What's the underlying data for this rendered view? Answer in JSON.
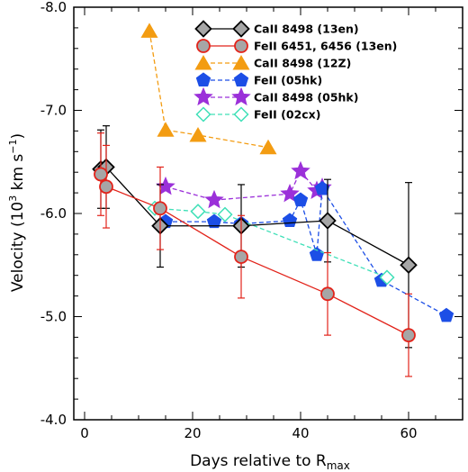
{
  "chart_data": {
    "type": "scatter",
    "xlabel": "Days relative to R",
    "xlabel_sub": "max",
    "ylabel": "Velocity",
    "ylabel_unit_prefix": "(10",
    "ylabel_unit_exp": "3",
    "ylabel_unit_mid": " km s",
    "ylabel_unit_exp2": "−1",
    "ylabel_unit_suffix": ")",
    "xlim": [
      -2,
      70
    ],
    "ylim": [
      -8.0,
      -4.0
    ],
    "y_inverted": true,
    "xticks": [
      0,
      20,
      40,
      60
    ],
    "xtick_labels": [
      "0",
      "20",
      "40",
      "60"
    ],
    "yticks": [
      -8.0,
      -7.0,
      -6.0,
      -5.0,
      -4.0
    ],
    "ytick_labels": [
      "-8.0",
      "-7.0",
      "-6.0",
      "-5.0",
      "-4.0"
    ],
    "legend_position": "top-right",
    "series": [
      {
        "name": "CaII 8498 (13en)",
        "marker": "diamond",
        "color": "#000000",
        "fill": "#a6a6a6",
        "line": "solid",
        "x": [
          3,
          4,
          14,
          29,
          45,
          60
        ],
        "y": [
          -6.43,
          -6.45,
          -5.88,
          -5.88,
          -5.93,
          -5.5
        ],
        "err": [
          0.38,
          0.4,
          0.4,
          0.4,
          0.4,
          0.8
        ],
        "errcolor": "#000000"
      },
      {
        "name": "FeII 6451, 6456 (13en)",
        "marker": "circle",
        "color": "#e2231a",
        "fill": "#a6a6a6",
        "line": "solid",
        "x": [
          3,
          4,
          14,
          29,
          45,
          60
        ],
        "y": [
          -6.38,
          -6.26,
          -6.05,
          -5.58,
          -5.22,
          -4.82
        ],
        "err": [
          0.4,
          0.4,
          0.4,
          0.4,
          0.4,
          0.4
        ],
        "errcolor": "#e2231a"
      },
      {
        "name": "CaII 8498 (12Z)",
        "marker": "triangle",
        "color": "#f39c12",
        "fill": "#f39c12",
        "line": "dashed",
        "x": [
          12,
          15,
          21,
          34
        ],
        "y": [
          -7.77,
          -6.81,
          -6.76,
          -6.64
        ]
      },
      {
        "name": "FeII (05hk)",
        "marker": "pentagon",
        "color": "#1c4ee6",
        "fill": "#1c4ee6",
        "line": "dashed",
        "x": [
          15,
          24,
          29,
          38,
          40,
          43,
          44,
          55,
          67
        ],
        "y": [
          -5.92,
          -5.92,
          -5.9,
          -5.93,
          -6.13,
          -5.6,
          -6.24,
          -5.35,
          -5.01
        ]
      },
      {
        "name": "CaII 8498 (05hk)",
        "marker": "star",
        "color": "#9b30d9",
        "fill": "#9b30d9",
        "line": "dashed",
        "x": [
          15,
          24,
          38,
          40,
          43,
          44
        ],
        "y": [
          -6.26,
          -6.13,
          -6.19,
          -6.41,
          -6.22,
          -6.25
        ]
      },
      {
        "name": "FeII (02cx)",
        "marker": "diamond-open",
        "color": "#40e0b8",
        "fill": "#ffffff",
        "line": "dashed",
        "x": [
          13,
          21,
          26,
          56
        ],
        "y": [
          -6.05,
          -6.02,
          -5.99,
          -5.38
        ]
      }
    ]
  }
}
